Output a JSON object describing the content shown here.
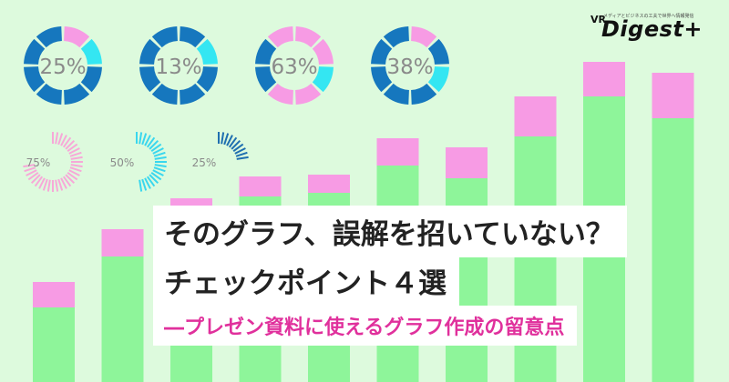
{
  "logo": {
    "vr": "VR",
    "name": "Digest+",
    "tagline": "メディアとビジネスの工夫で世界へ情報発信"
  },
  "donuts": [
    {
      "label": "25%",
      "value": 0.25
    },
    {
      "label": "13%",
      "value": 0.13
    },
    {
      "label": "63%",
      "value": 0.63
    },
    {
      "label": "38%",
      "value": 0.38
    }
  ],
  "radials": [
    {
      "label": "75%",
      "value": 0.75,
      "color": "#f7a8d8"
    },
    {
      "label": "50%",
      "value": 0.5,
      "color": "#39d7ee"
    },
    {
      "label": "25%",
      "value": 0.25,
      "color": "#1f6fb0"
    }
  ],
  "bars": [
    {
      "total": 110,
      "top": 28
    },
    {
      "total": 168,
      "top": 30
    },
    {
      "total": 202,
      "top": 30
    },
    {
      "total": 226,
      "top": 22
    },
    {
      "total": 228,
      "top": 20
    },
    {
      "total": 268,
      "top": 30
    },
    {
      "total": 258,
      "top": 34
    },
    {
      "total": 314,
      "top": 44
    },
    {
      "total": 352,
      "top": 38
    },
    {
      "total": 340,
      "top": 50
    }
  ],
  "colors": {
    "background": "#ddfadd",
    "bar_green": "#8ef59a",
    "bar_pink": "#f79be4",
    "donut_dark": "#1677be",
    "donut_cyan": "#34e6f2",
    "donut_pink": "#f79be4",
    "accent": "#e0309c"
  },
  "headline": {
    "line1": "そのグラフ、誤解を招いていない？",
    "line2": "チェックポイント４選",
    "subtitle": "―プレゼン資料に使えるグラフ作成の留意点"
  }
}
